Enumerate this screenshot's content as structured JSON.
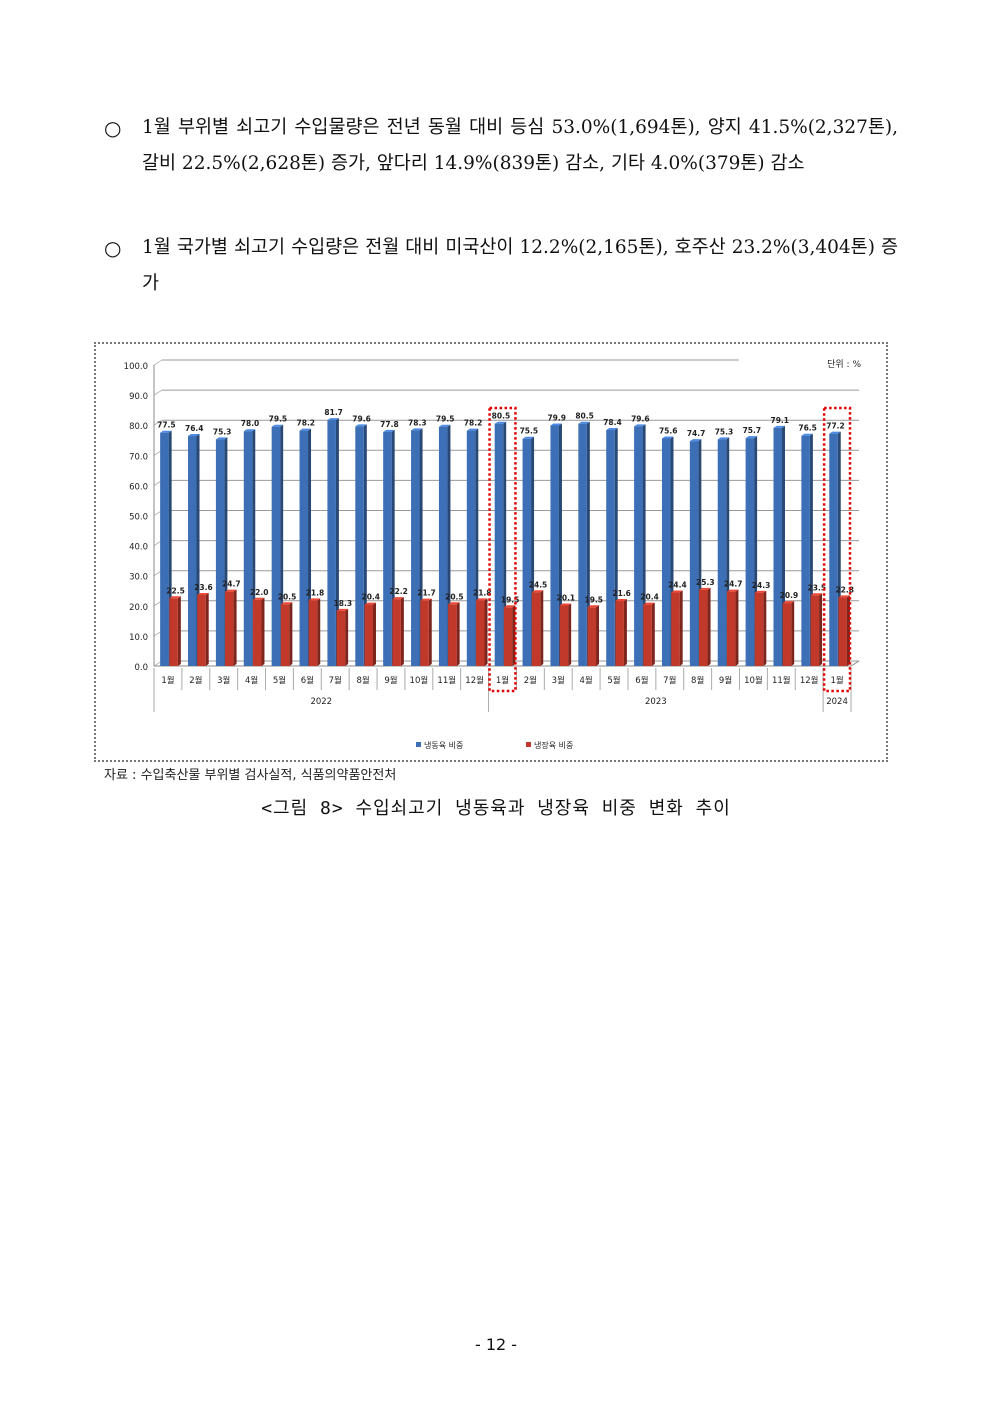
{
  "paragraphs": [
    {
      "bullet": "○",
      "text": "1월 부위별 쇠고기 수입물량은 전년 동월 대비 등심 53.0%(1,694톤), 양지 41.5%(2,327톤), 갈비 22.5%(2,628톤) 증가, 앞다리 14.9%(839톤) 감소, 기타 4.0%(379톤) 감소"
    },
    {
      "bullet": "○",
      "text": "1월 국가별 쇠고기 수입량은 전월 대비 미국산이 12.2%(2,165톤), 호주산 23.2%(3,404톤) 증가"
    }
  ],
  "chart_data": {
    "type": "bar",
    "unit_label": "단위 : %",
    "categories": [
      "1월",
      "2월",
      "3월",
      "4월",
      "5월",
      "6월",
      "7월",
      "8월",
      "9월",
      "10월",
      "11월",
      "12월",
      "1월",
      "2월",
      "3월",
      "4월",
      "5월",
      "6월",
      "7월",
      "8월",
      "9월",
      "10월",
      "11월",
      "12월",
      "1월"
    ],
    "year_groups": [
      {
        "label": "2022",
        "count": 12
      },
      {
        "label": "2023",
        "count": 12
      },
      {
        "label": "2024",
        "count": 1
      }
    ],
    "series": [
      {
        "name": "냉동육 비중",
        "color": "#3d6fb6",
        "values": [
          77.5,
          76.4,
          75.3,
          78.0,
          79.5,
          78.2,
          81.7,
          79.6,
          77.8,
          78.3,
          79.5,
          78.2,
          80.5,
          75.5,
          79.9,
          80.5,
          78.4,
          79.6,
          75.6,
          74.7,
          75.3,
          75.7,
          79.1,
          76.5,
          77.2
        ]
      },
      {
        "name": "냉장육 비중",
        "color": "#c0392b",
        "values": [
          22.5,
          23.6,
          24.7,
          22.0,
          20.5,
          21.8,
          18.3,
          20.4,
          22.2,
          21.7,
          20.5,
          21.8,
          19.5,
          24.5,
          20.1,
          19.5,
          21.6,
          20.4,
          24.4,
          25.3,
          24.7,
          24.3,
          20.9,
          23.5,
          22.8
        ]
      }
    ],
    "ylim": [
      0,
      100
    ],
    "yticks": [
      "0.0",
      "10.0",
      "20.0",
      "30.0",
      "40.0",
      "50.0",
      "60.0",
      "70.0",
      "80.0",
      "90.0",
      "100.0"
    ],
    "highlighted_categories": [
      12,
      24
    ],
    "highlight_color": "#e00000",
    "legend_position": "bottom"
  },
  "source": "자료 : 수입축산물 부위별 검사실적, 식품의약품안전처",
  "caption": "<그림 8> 수입쇠고기 냉동육과 냉장육 비중 변화 추이",
  "page_number": "- 12 -"
}
